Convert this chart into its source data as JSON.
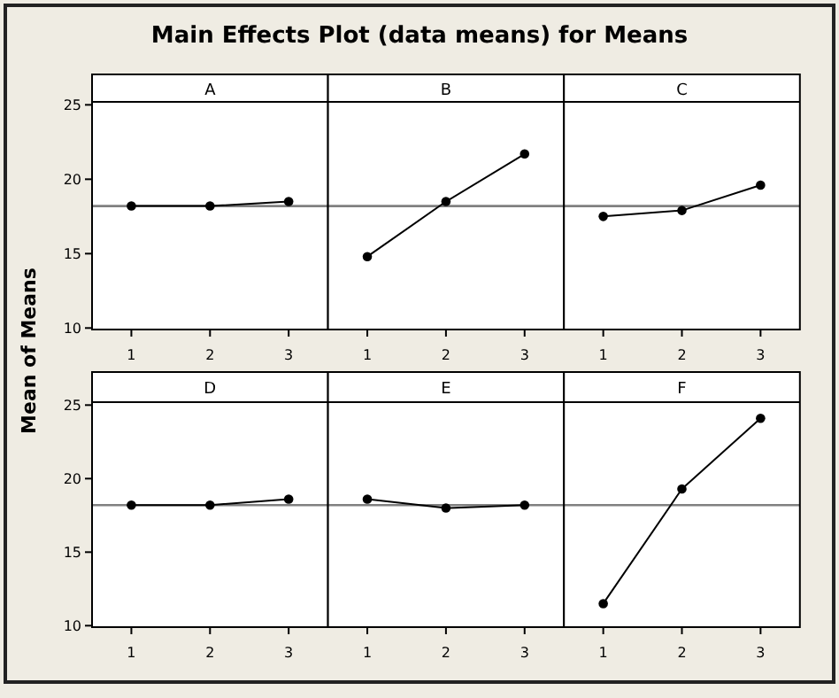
{
  "chart_data": [
    {
      "type": "line",
      "title": "A",
      "annotations": [
        "Main Effects Plot (data means) for Means"
      ],
      "ylabel": "Mean of Means",
      "x": [
        1,
        2,
        3
      ],
      "values": [
        18.2,
        18.2,
        18.5
      ],
      "color": "#000000",
      "marker": "circle",
      "line_style": "solid",
      "xlim": [
        0.5,
        3.5
      ],
      "xticks": [
        1,
        2,
        3
      ],
      "ylim": [
        9.9,
        25.2
      ],
      "yticks": [
        10,
        15,
        20,
        25
      ],
      "ref_lines": [
        {
          "axis": "y",
          "value": 18.2,
          "color": "#808080"
        }
      ],
      "grid": false
    },
    {
      "type": "line",
      "title": "B",
      "x": [
        1,
        2,
        3
      ],
      "values": [
        14.8,
        18.5,
        21.7
      ],
      "color": "#000000",
      "marker": "circle",
      "line_style": "solid",
      "xlim": [
        0.5,
        3.5
      ],
      "xticks": [
        1,
        2,
        3
      ],
      "ylim": [
        9.9,
        25.2
      ],
      "tick_labels": "x",
      "ref_lines": [
        {
          "axis": "y",
          "value": 18.2,
          "color": "#808080"
        }
      ],
      "grid": false
    },
    {
      "type": "line",
      "title": "C",
      "x": [
        1,
        2,
        3
      ],
      "values": [
        17.5,
        17.9,
        19.6
      ],
      "color": "#000000",
      "marker": "circle",
      "line_style": "solid",
      "xlim": [
        0.5,
        3.5
      ],
      "xticks": [
        1,
        2,
        3
      ],
      "ylim": [
        9.9,
        25.2
      ],
      "tick_labels": "x",
      "ref_lines": [
        {
          "axis": "y",
          "value": 18.2,
          "color": "#808080"
        }
      ],
      "grid": false
    },
    {
      "type": "line",
      "title": "D",
      "x": [
        1,
        2,
        3
      ],
      "values": [
        18.2,
        18.2,
        18.6
      ],
      "color": "#000000",
      "marker": "circle",
      "line_style": "solid",
      "xlim": [
        0.5,
        3.5
      ],
      "xticks": [
        1,
        2,
        3
      ],
      "ylim": [
        9.9,
        25.2
      ],
      "yticks": [
        10,
        15,
        20,
        25
      ],
      "ref_lines": [
        {
          "axis": "y",
          "value": 18.2,
          "color": "#808080"
        }
      ],
      "grid": false
    },
    {
      "type": "line",
      "title": "E",
      "x": [
        1,
        2,
        3
      ],
      "values": [
        18.6,
        18.0,
        18.2
      ],
      "color": "#000000",
      "marker": "circle",
      "line_style": "solid",
      "xlim": [
        0.5,
        3.5
      ],
      "xticks": [
        1,
        2,
        3
      ],
      "ylim": [
        9.9,
        25.2
      ],
      "tick_labels": "x",
      "ref_lines": [
        {
          "axis": "y",
          "value": 18.2,
          "color": "#808080"
        }
      ],
      "grid": false
    },
    {
      "type": "line",
      "title": "F",
      "x": [
        1,
        2,
        3
      ],
      "values": [
        11.5,
        19.3,
        24.1
      ],
      "color": "#000000",
      "marker": "circle",
      "line_style": "solid",
      "xlim": [
        0.5,
        3.5
      ],
      "xticks": [
        1,
        2,
        3
      ],
      "ylim": [
        9.9,
        25.2
      ],
      "tick_labels": "x",
      "ref_lines": [
        {
          "axis": "y",
          "value": 18.2,
          "color": "#808080"
        }
      ],
      "grid": false
    }
  ]
}
